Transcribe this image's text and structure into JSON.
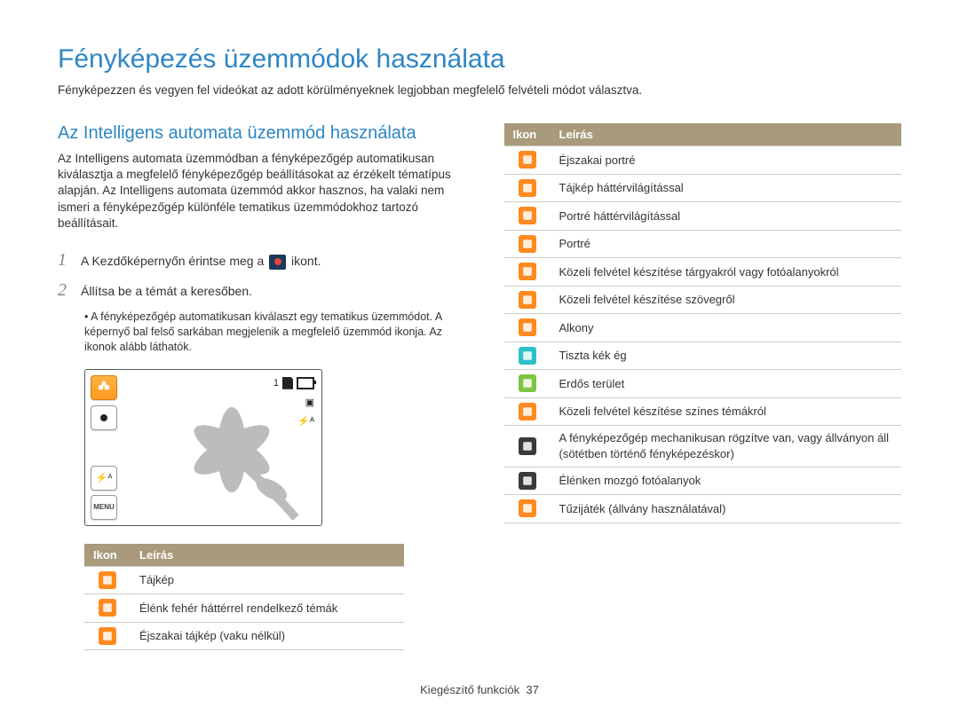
{
  "title": "Fényképezés üzemmódok használata",
  "subtitle": "Fényképezzen és vegyen fel videókat az adott körülményeknek legjobban megfelelő felvételi módot választva.",
  "section_title": "Az Intelligens automata üzemmód használata",
  "section_body": "Az Intelligens automata üzemmódban a fényképezőgép automatikusan kiválasztja a megfelelő fényképezőgép beállításokat az érzékelt tématípus alapján. Az Intelligens automata üzemmód akkor hasznos, ha valaki nem ismeri a fényképezőgép különféle tematikus üzemmódokhoz tartozó beállításait.",
  "steps": [
    {
      "num": "1",
      "pre": "A Kezdőképernyőn érintse meg a ",
      "post": " ikont."
    },
    {
      "num": "2",
      "pre": "Állítsa be a témát a keresőben.",
      "post": ""
    }
  ],
  "bullet": "A fényképezőgép automatikusan kiválaszt egy tematikus üzemmódot. A képernyő bal felső sarkában megjelenik a megfelelő üzemmód ikonja. Az ikonok alább láthatók.",
  "camera_indicator": "1",
  "menu_label": "MENU",
  "th_icon": "Ikon",
  "th_desc": "Leírás",
  "table_left": [
    {
      "color": "#ff8a1f",
      "name": "landscape-icon",
      "desc": "Tájkép"
    },
    {
      "color": "#ff8a1f",
      "name": "white-icon",
      "desc": "Élénk fehér háttérrel rendelkező témák"
    },
    {
      "color": "#ff8a1f",
      "name": "night-icon",
      "desc": "Éjszakai tájkép (vaku nélkül)"
    }
  ],
  "table_right": [
    {
      "color": "#ff8a1f",
      "name": "night-portrait-icon",
      "desc": "Éjszakai portré"
    },
    {
      "color": "#ff8a1f",
      "name": "backlight-landscape-icon",
      "desc": "Tájkép háttérvilágítással"
    },
    {
      "color": "#ff8a1f",
      "name": "backlight-portrait-icon",
      "desc": "Portré háttérvilágítással"
    },
    {
      "color": "#ff8a1f",
      "name": "portrait-icon",
      "desc": "Portré"
    },
    {
      "color": "#ff8a1f",
      "name": "macro-object-icon",
      "desc": "Közeli felvétel készítése tárgyakról vagy fotóalanyokról"
    },
    {
      "color": "#ff8a1f",
      "name": "macro-text-icon",
      "desc": "Közeli felvétel készítése szövegről"
    },
    {
      "color": "#ff8a1f",
      "name": "sunset-icon",
      "desc": "Alkony"
    },
    {
      "color": "#2cc1c9",
      "name": "bluesky-icon",
      "desc": "Tiszta kék ég"
    },
    {
      "color": "#7ec642",
      "name": "forest-icon",
      "desc": "Erdős terület"
    },
    {
      "color": "#ff8a1f",
      "name": "macro-color-icon",
      "desc": "Közeli felvétel készítése színes témákról"
    },
    {
      "color": "#3a3a3a",
      "name": "tripod-icon",
      "desc": "A fényképezőgép mechanikusan rögzítve van, vagy állványon áll (sötétben történő fényképezéskor)"
    },
    {
      "color": "#3a3a3a",
      "name": "action-icon",
      "desc": "Élénken mozgó fotóalanyok"
    },
    {
      "color": "#ff8a1f",
      "name": "fireworks-icon",
      "desc": "Tűzijáték (állvány használatával)"
    }
  ],
  "footer_label": "Kiegészítő funkciók",
  "footer_page": "37"
}
